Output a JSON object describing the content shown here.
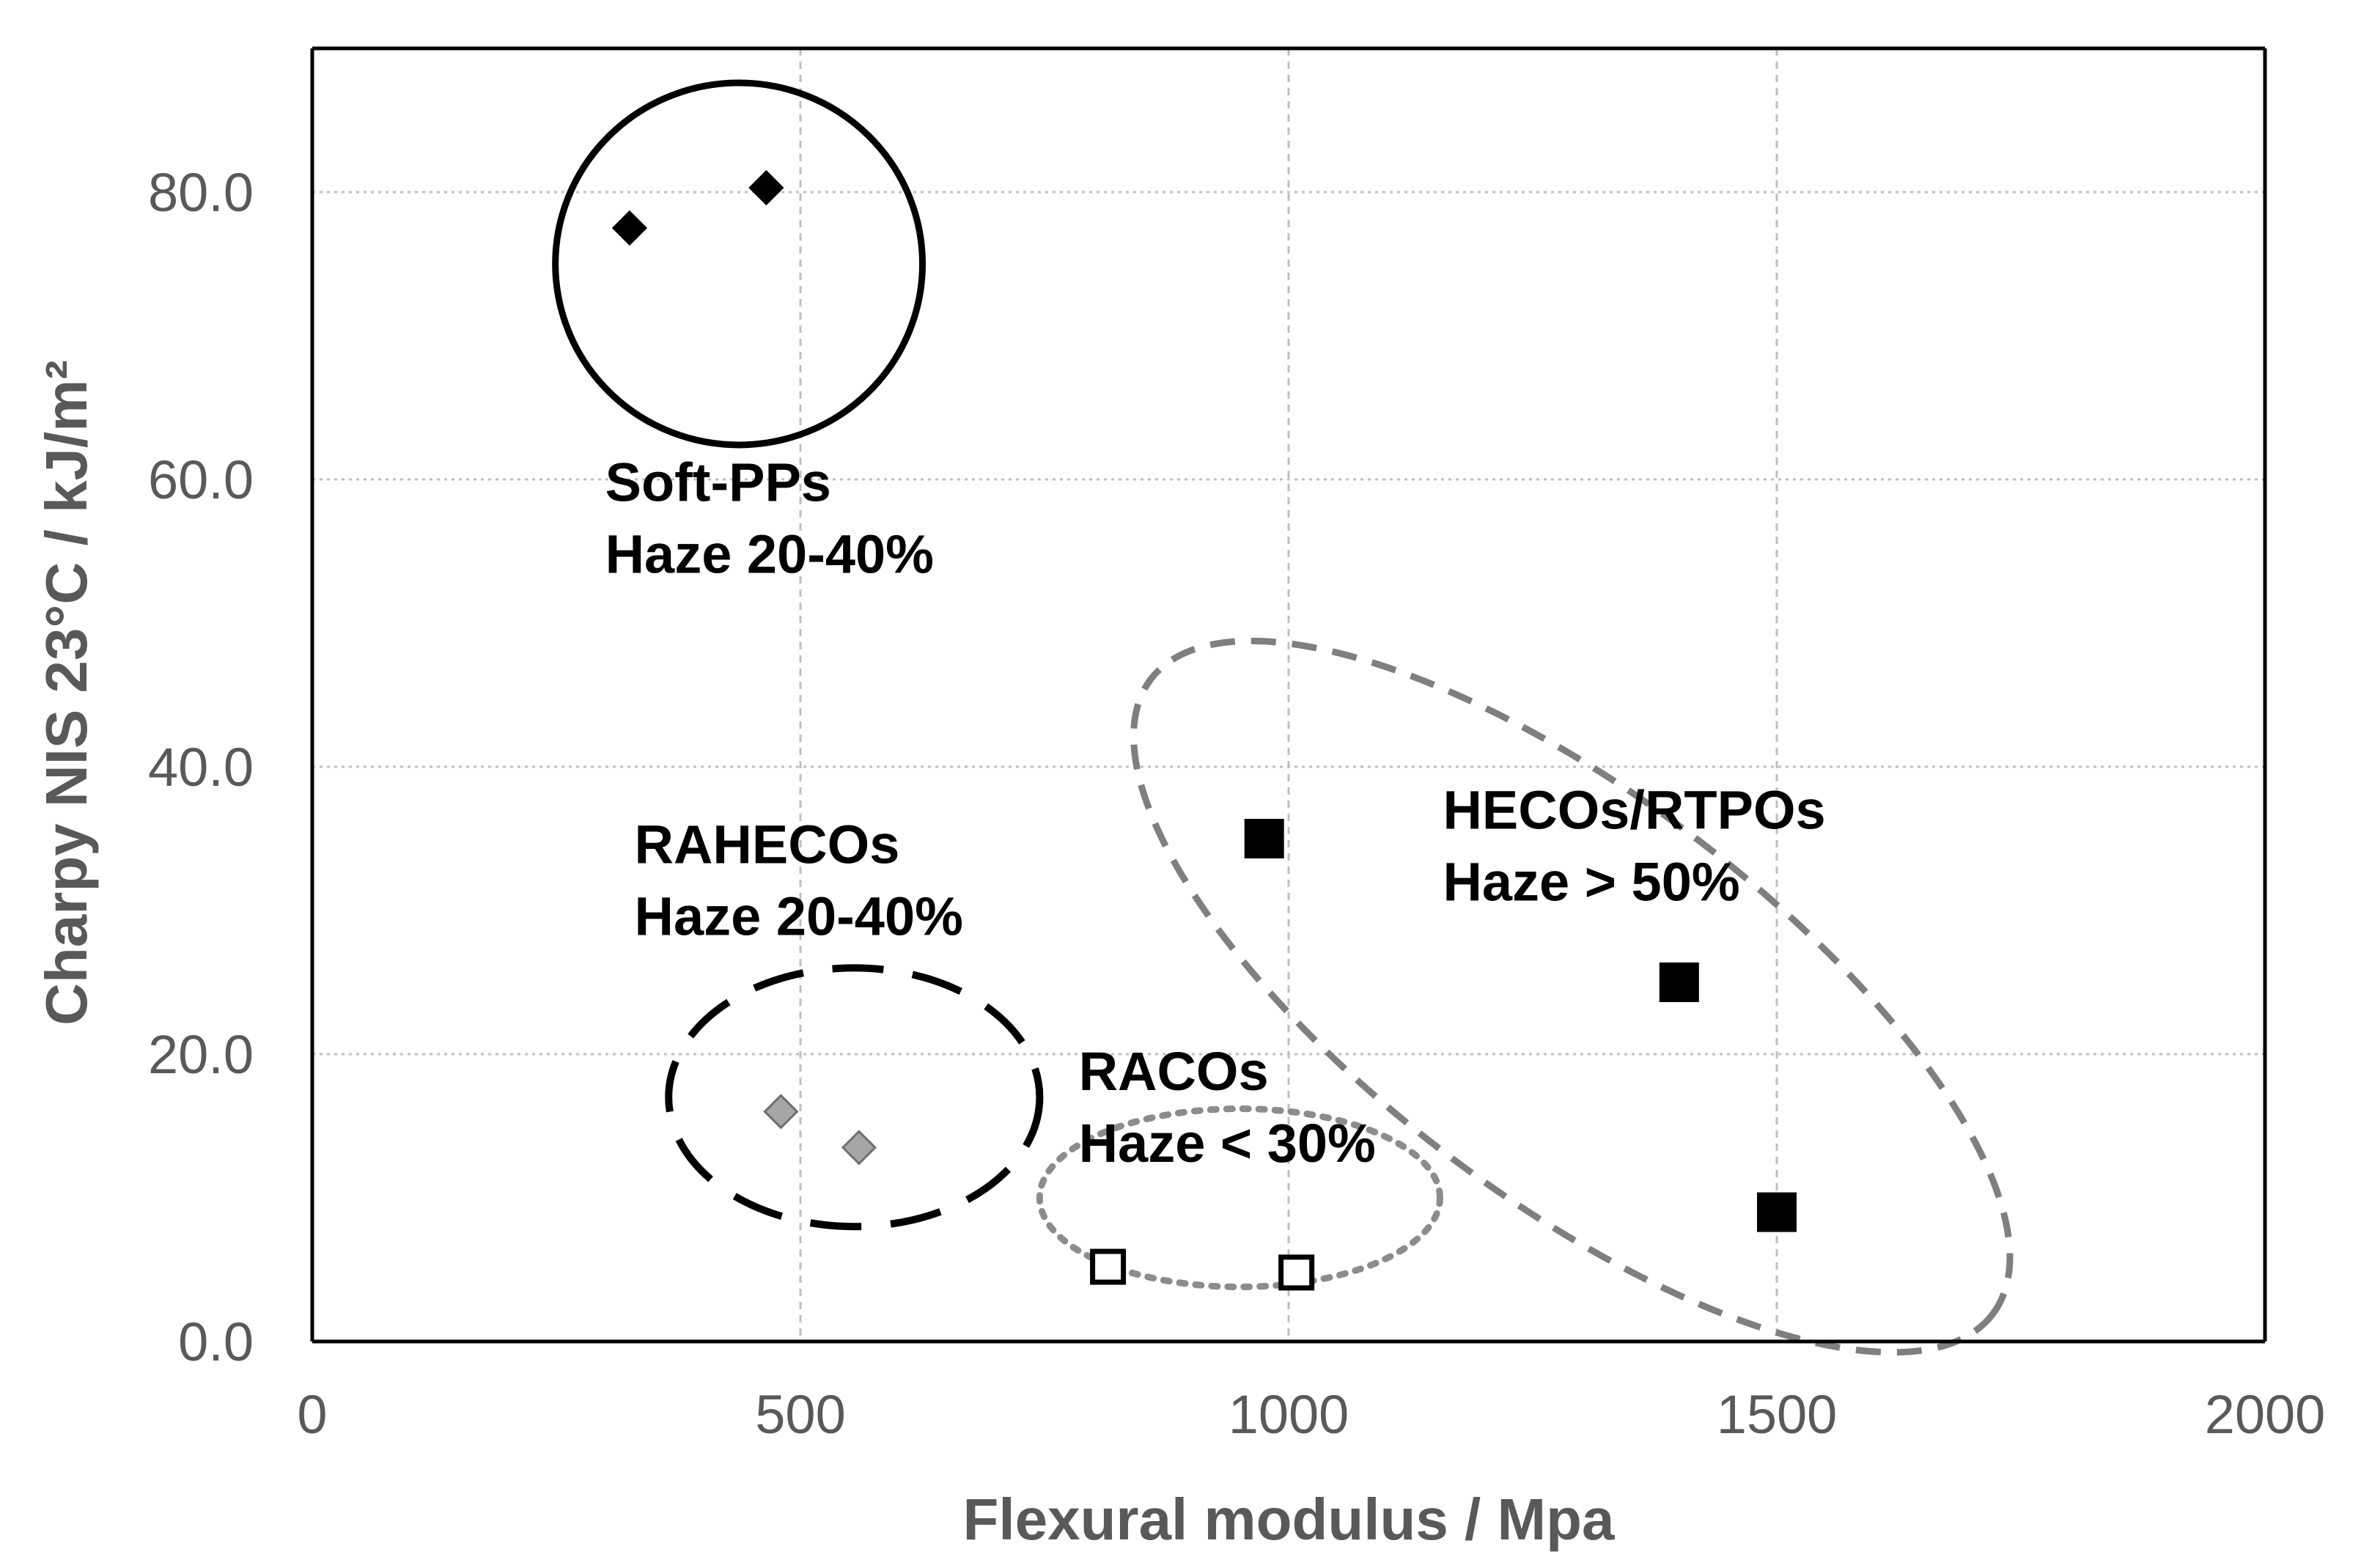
{
  "chart_data": {
    "type": "scatter",
    "title": "",
    "xlabel": "Flexural modulus  / Mpa",
    "ylabel": "Charpy NIS 23°C / kJ/m²",
    "xlim": [
      0,
      2000
    ],
    "ylim": [
      0,
      90
    ],
    "x_ticks": [
      {
        "value": 0,
        "label": "0"
      },
      {
        "value": 500,
        "label": "500"
      },
      {
        "value": 1000,
        "label": "1000"
      },
      {
        "value": 1500,
        "label": "1500"
      },
      {
        "value": 2000,
        "label": "2000"
      }
    ],
    "y_ticks": [
      {
        "value": 0,
        "label": "0.0"
      },
      {
        "value": 20,
        "label": "20.0"
      },
      {
        "value": 40,
        "label": "40.0"
      },
      {
        "value": 60,
        "label": "60.0"
      },
      {
        "value": 80,
        "label": "80.0"
      }
    ],
    "grid": true,
    "series": [
      {
        "name": "Soft-PPs",
        "marker": "diamond",
        "color": "#000000",
        "points": [
          {
            "x": 325,
            "y": 77.5
          },
          {
            "x": 465,
            "y": 80.3
          }
        ]
      },
      {
        "name": "RAHECOs",
        "marker": "diamond",
        "color": "#a6a6a6",
        "points": [
          {
            "x": 480,
            "y": 16.0
          },
          {
            "x": 560,
            "y": 13.5
          }
        ]
      },
      {
        "name": "RACOs",
        "marker": "square-open",
        "color": "#000000",
        "points": [
          {
            "x": 815,
            "y": 5.2
          },
          {
            "x": 1008,
            "y": 4.8
          }
        ]
      },
      {
        "name": "HECOs/RTPOs",
        "marker": "square",
        "color": "#000000",
        "points": [
          {
            "x": 975,
            "y": 35.0
          },
          {
            "x": 1400,
            "y": 25.0
          },
          {
            "x": 1500,
            "y": 9.0
          }
        ]
      }
    ],
    "regions": [
      {
        "name": "soft-pps-region",
        "shape": "circle",
        "style": "solid",
        "color": "#000000",
        "cx": 437,
        "cy": 75,
        "rx": 188,
        "ry": 12.6,
        "rotation": 0
      },
      {
        "name": "rahecos-region",
        "shape": "ellipse",
        "style": "long-dash",
        "color": "#000000",
        "cx": 555,
        "cy": 17,
        "rx": 190,
        "ry": 9.0,
        "rotation": 0
      },
      {
        "name": "racos-region",
        "shape": "ellipse",
        "style": "dotted",
        "color": "#8c8c8c",
        "cx": 950,
        "cy": 10,
        "rx": 205,
        "ry": 6.2,
        "rotation": 0
      },
      {
        "name": "hecos-rtpos-region",
        "shape": "ellipse",
        "style": "dashed",
        "color": "#7f7f7f",
        "cx": 1290,
        "cy": 24,
        "rx": 540,
        "ry": 14.0,
        "rotation": 37
      }
    ],
    "annotations": [
      {
        "name": "soft-pps-label",
        "lines": [
          "Soft-PPs",
          "Haze 20-40%"
        ],
        "x": 300,
        "y": 58.5
      },
      {
        "name": "rahecos-label",
        "lines": [
          "RAHECOs",
          "Haze 20-40%"
        ],
        "x": 330,
        "y": 33.3
      },
      {
        "name": "racos-label",
        "lines": [
          "RACOs",
          "Haze < 30%"
        ],
        "x": 785,
        "y": 17.5
      },
      {
        "name": "hecos-rtpos-label",
        "lines": [
          "HECOs/RTPOs",
          "Haze > 50%"
        ],
        "x": 1158,
        "y": 35.7
      }
    ]
  }
}
